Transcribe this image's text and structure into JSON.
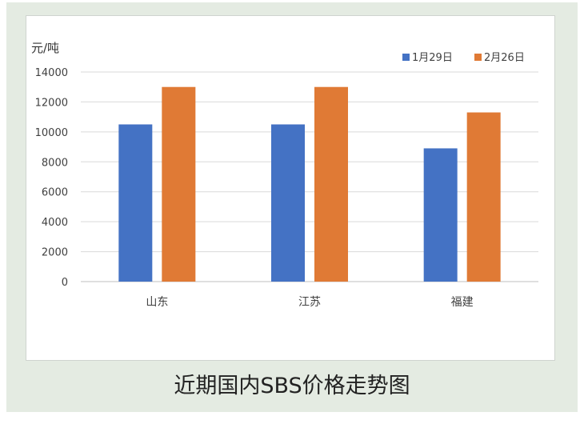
{
  "chart_data": {
    "type": "bar",
    "title": "近期国内SBS价格走势图",
    "ylabel": "元/吨",
    "xlabel": "",
    "ylim": [
      0,
      14000
    ],
    "yticks": [
      0,
      2000,
      4000,
      6000,
      8000,
      10000,
      12000,
      14000
    ],
    "grid": true,
    "legend_position": "top-right",
    "categories": [
      "山东",
      "江苏",
      "福建"
    ],
    "series": [
      {
        "name": "1月29日",
        "color": "#4472c4",
        "values": [
          10500,
          10500,
          8900
        ]
      },
      {
        "name": "2月26日",
        "color": "#e07a35",
        "values": [
          13000,
          13000,
          11300
        ]
      }
    ]
  }
}
